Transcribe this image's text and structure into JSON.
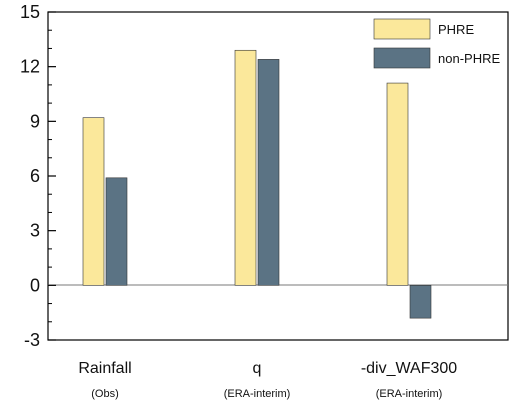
{
  "chart_data": {
    "type": "bar",
    "categories": [
      "Rainfall",
      "q",
      "-div_WAF300"
    ],
    "category_sublabels": [
      "(Obs)",
      "(ERA-interim)",
      "(ERA-interim)"
    ],
    "series": [
      {
        "name": "PHRE",
        "values": [
          9.2,
          12.9,
          11.1
        ],
        "color": "#fbe89b"
      },
      {
        "name": "non-PHRE",
        "values": [
          5.9,
          12.4,
          -1.8
        ],
        "color": "#5b7384"
      }
    ],
    "yticks": [
      -3,
      0,
      3,
      6,
      9,
      12,
      15
    ],
    "ylim": [
      -3,
      15
    ],
    "legend_position": "top-right",
    "zero_line": true,
    "grid": false
  }
}
